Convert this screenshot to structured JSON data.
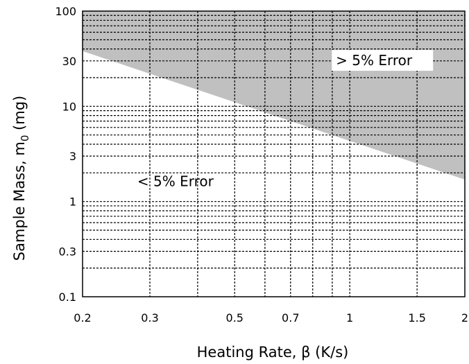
{
  "chart_data": {
    "type": "area",
    "xlabel": "Heating Rate, β (K/s)",
    "ylabel_main": "Sample Mass, m",
    "ylabel_sub": "0",
    "ylabel_unit": "(mg)",
    "x_scale": "log",
    "y_scale": "log",
    "xlim": [
      0.2,
      2
    ],
    "ylim": [
      0.1,
      100
    ],
    "x_ticks": [
      0.2,
      0.3,
      0.5,
      0.7,
      1,
      1.5,
      2
    ],
    "x_tick_labels": [
      "0.2",
      "0.3",
      "0.5",
      "0.7",
      "1",
      "1.5",
      "2"
    ],
    "y_ticks": [
      0.1,
      0.3,
      1,
      3,
      10,
      30,
      100
    ],
    "y_tick_labels": [
      "0.1",
      "0.3",
      "1",
      "3",
      "10",
      "30",
      "100"
    ],
    "x_grid": [
      0.3,
      0.4,
      0.5,
      0.6,
      0.7,
      0.8,
      0.9,
      1,
      1.5
    ],
    "y_grid": [
      0.2,
      0.3,
      0.4,
      0.5,
      0.6,
      0.7,
      0.8,
      0.9,
      1,
      2,
      3,
      4,
      5,
      6,
      7,
      8,
      9,
      10,
      20,
      30,
      40,
      50,
      60,
      70,
      80,
      90
    ],
    "grid_style": "dashed",
    "boundary": {
      "x": [
        0.2,
        2
      ],
      "y": [
        38,
        1.7
      ]
    },
    "regions": [
      {
        "label": "> 5% Error",
        "position": "above boundary",
        "color": "#c0c0c0"
      },
      {
        "label": "< 5% Error",
        "position": "below boundary",
        "color": "#ffffff"
      }
    ],
    "annotation_positions": {
      "upper": [
        0.92,
        27
      ],
      "lower": [
        0.35,
        1.45
      ]
    }
  }
}
